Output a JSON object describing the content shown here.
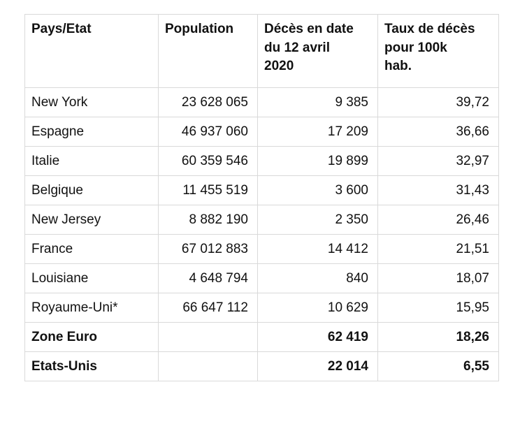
{
  "colors": {
    "background": "#ffffff",
    "border": "#d9d9d9",
    "text": "#111111"
  },
  "chart_data": {
    "type": "table",
    "title": "",
    "columns": [
      "Pays/Etat",
      "Population",
      "Décès en date\ndu 12 avril\n2020",
      "Taux de décès\npour 100k\nhab."
    ],
    "rows": [
      {
        "pays": "New York",
        "population": "23 628 065",
        "deces": "9 385",
        "taux": "39,72",
        "bold": false
      },
      {
        "pays": "Espagne",
        "population": "46 937 060",
        "deces": "17 209",
        "taux": "36,66",
        "bold": false
      },
      {
        "pays": "Italie",
        "population": "60 359 546",
        "deces": "19 899",
        "taux": "32,97",
        "bold": false
      },
      {
        "pays": "Belgique",
        "population": "11 455 519",
        "deces": "3 600",
        "taux": "31,43",
        "bold": false
      },
      {
        "pays": "New Jersey",
        "population": "8 882 190",
        "deces": "2 350",
        "taux": "26,46",
        "bold": false
      },
      {
        "pays": "France",
        "population": "67 012 883",
        "deces": "14 412",
        "taux": "21,51",
        "bold": false
      },
      {
        "pays": "Louisiane",
        "population": "4 648 794",
        "deces": "840",
        "taux": "18,07",
        "bold": false
      },
      {
        "pays": "Royaume-Uni*",
        "population": "66 647 112",
        "deces": "10 629",
        "taux": "15,95",
        "bold": false
      },
      {
        "pays": "Zone Euro",
        "population": "",
        "deces": "62 419",
        "taux": "18,26",
        "bold": true
      },
      {
        "pays": "Etats-Unis",
        "population": "",
        "deces": "22 014",
        "taux": "6,55",
        "bold": true
      }
    ]
  }
}
